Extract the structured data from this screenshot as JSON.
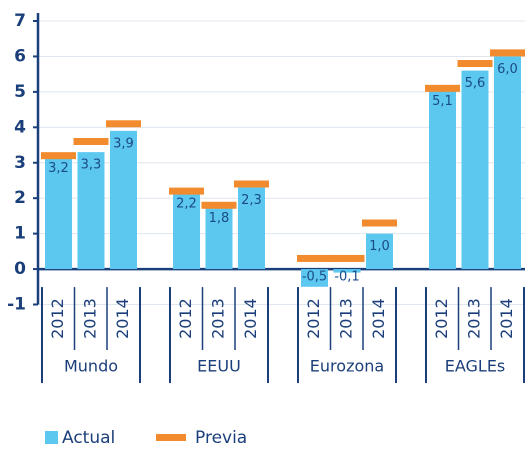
{
  "chart_data": {
    "type": "bar",
    "groups": [
      {
        "name": "Mundo",
        "categories": [
          "2012",
          "2013",
          "2014"
        ]
      },
      {
        "name": "EEUU",
        "categories": [
          "2012",
          "2013",
          "2014"
        ]
      },
      {
        "name": "Eurozona",
        "categories": [
          "2012",
          "2013",
          "2014"
        ]
      },
      {
        "name": "EAGLEs",
        "categories": [
          "2012",
          "2013",
          "2014"
        ]
      }
    ],
    "series": [
      {
        "name": "Actual",
        "color": "#5cc8f0",
        "values": [
          3.2,
          3.3,
          3.9,
          2.2,
          1.8,
          2.3,
          -0.5,
          -0.1,
          1.0,
          5.1,
          5.6,
          6.0
        ],
        "value_labels": [
          "3,2",
          "3,3",
          "3,9",
          "2,2",
          "1,8",
          "2,3",
          "-0,5",
          "-0,1",
          "1,0",
          "5,1",
          "5,6",
          "6,0"
        ]
      },
      {
        "name": "Previa",
        "color": "#f28a2e",
        "values": [
          3.2,
          3.6,
          4.1,
          2.2,
          1.8,
          2.4,
          0.3,
          0.3,
          1.3,
          5.1,
          5.8,
          6.1
        ]
      }
    ],
    "ylim": [
      -1,
      7
    ],
    "yticks": [
      -1,
      0,
      1,
      2,
      3,
      4,
      5,
      6,
      7
    ],
    "grid": true
  }
}
